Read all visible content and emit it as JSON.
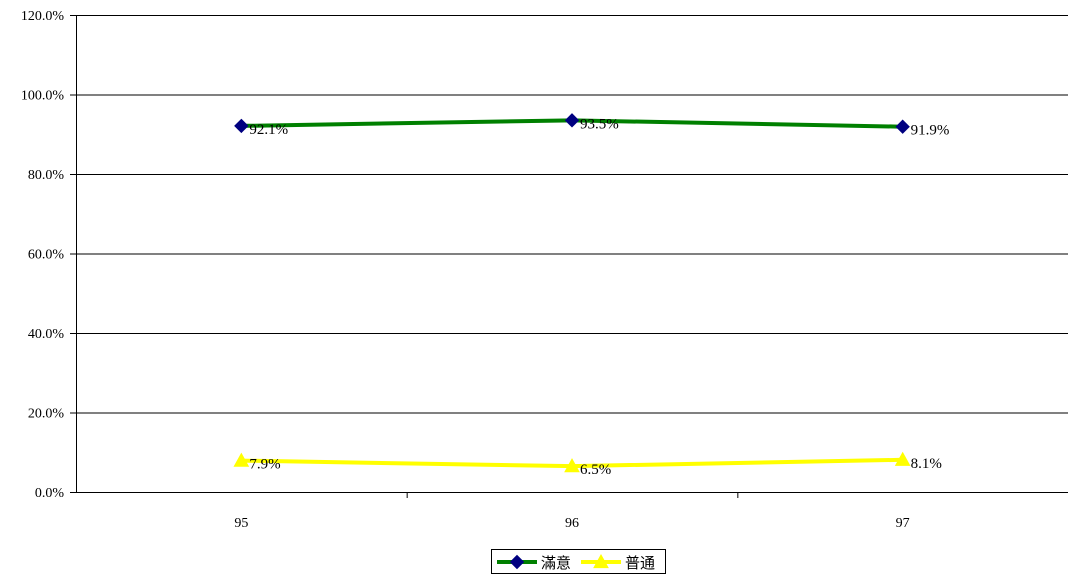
{
  "chart_data": {
    "type": "line",
    "categories": [
      "95",
      "96",
      "97"
    ],
    "series": [
      {
        "name": "滿意",
        "values": [
          92.1,
          93.5,
          91.9
        ],
        "labels": [
          "92.1%",
          "93.5%",
          "91.9%"
        ],
        "color": "#008000",
        "marker": "diamond",
        "marker_color": "#000080"
      },
      {
        "name": "普通",
        "values": [
          7.9,
          6.5,
          8.1
        ],
        "labels": [
          "7.9%",
          "6.5%",
          "8.1%"
        ],
        "color": "#FFFF00",
        "marker": "triangle",
        "marker_color": "#FFFF00"
      }
    ],
    "ylim": [
      0,
      120
    ],
    "yticks": [
      0,
      20,
      40,
      60,
      80,
      100,
      120
    ],
    "ytick_labels": [
      "0.0%",
      "20.0%",
      "40.0%",
      "60.0%",
      "80.0%",
      "100.0%",
      "120.0%"
    ],
    "grid": true,
    "legend_position": "bottom"
  }
}
